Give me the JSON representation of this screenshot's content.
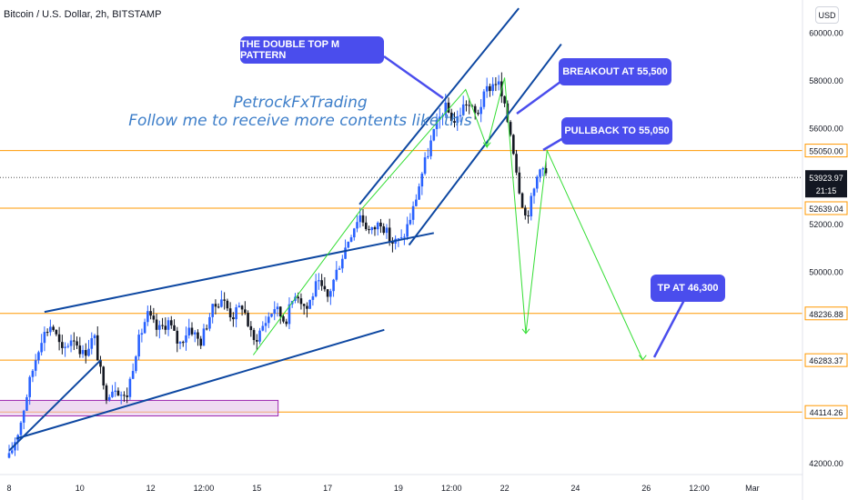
{
  "header": {
    "symbol_title": "Bitcoin / U.S. Dollar, 2h, BITSTAMP",
    "currency": "USD"
  },
  "watermark": {
    "line1": "PetrockFxTrading",
    "line2": "Follow me to receive more contents like this"
  },
  "annotations": {
    "double_top": "THE DOUBLE TOP M PATTERN",
    "breakout": "BREAKOUT AT 55,500",
    "pullback": "PULLBACK TO 55,050",
    "tp": "TP AT 46,300"
  },
  "colors": {
    "bull": "#2962ff",
    "bear": "#131722",
    "level_line": "#ff9800",
    "trendline": "#0d47a1",
    "pattern": "#33dd33",
    "callout": "#4a4ded",
    "zone_fill": "#e1bee7",
    "zone_border": "#9c27b0",
    "price_line": "#555555"
  },
  "chart_data": {
    "type": "candlestick",
    "title": "Bitcoin / U.S. Dollar, 2h, BITSTAMP",
    "ylim": [
      41600,
      61200
    ],
    "y_ticks": [
      "60000.00",
      "58000.00",
      "56000.00",
      "52000.00",
      "50000.00",
      "42000.00"
    ],
    "x_ticks": [
      {
        "label": "8",
        "day": 8
      },
      {
        "label": "10",
        "day": 10
      },
      {
        "label": "12",
        "day": 12
      },
      {
        "label": "12:00",
        "day": 13.5
      },
      {
        "label": "15",
        "day": 15
      },
      {
        "label": "17",
        "day": 17
      },
      {
        "label": "19",
        "day": 19
      },
      {
        "label": "12:00",
        "day": 20.5
      },
      {
        "label": "22",
        "day": 22
      },
      {
        "label": "24",
        "day": 24
      },
      {
        "label": "26",
        "day": 26
      },
      {
        "label": "12:00",
        "day": 27.5
      },
      {
        "label": "Mar",
        "day": 29
      }
    ],
    "horizontal_levels": [
      {
        "price": 55050,
        "label": "55050.00"
      },
      {
        "price": 52639.04,
        "label": "52639.04"
      },
      {
        "price": 48236.88,
        "label": "48236.88"
      },
      {
        "price": 46283.37,
        "label": "46283.37"
      },
      {
        "price": 44114.26,
        "label": "44114.26"
      }
    ],
    "current_price": {
      "price": 53923.97,
      "label": "53923.97",
      "countdown": "21:15"
    },
    "price_path": [
      {
        "day": 8.0,
        "price": 42200
      },
      {
        "day": 8.3,
        "price": 43500
      },
      {
        "day": 8.6,
        "price": 45500
      },
      {
        "day": 8.9,
        "price": 47200
      },
      {
        "day": 9.2,
        "price": 47800
      },
      {
        "day": 9.5,
        "price": 46600
      },
      {
        "day": 9.8,
        "price": 47300
      },
      {
        "day": 10.1,
        "price": 46500
      },
      {
        "day": 10.4,
        "price": 47300
      },
      {
        "day": 10.7,
        "price": 44800
      },
      {
        "day": 11.0,
        "price": 45200
      },
      {
        "day": 11.3,
        "price": 44600
      },
      {
        "day": 11.6,
        "price": 46800
      },
      {
        "day": 11.9,
        "price": 48200
      },
      {
        "day": 12.2,
        "price": 47500
      },
      {
        "day": 12.5,
        "price": 47900
      },
      {
        "day": 12.8,
        "price": 46900
      },
      {
        "day": 13.1,
        "price": 47700
      },
      {
        "day": 13.4,
        "price": 47000
      },
      {
        "day": 13.7,
        "price": 48300
      },
      {
        "day": 14.0,
        "price": 48900
      },
      {
        "day": 14.3,
        "price": 48100
      },
      {
        "day": 14.6,
        "price": 48600
      },
      {
        "day": 14.9,
        "price": 47000
      },
      {
        "day": 15.2,
        "price": 47800
      },
      {
        "day": 15.5,
        "price": 48500
      },
      {
        "day": 15.8,
        "price": 47900
      },
      {
        "day": 16.1,
        "price": 49200
      },
      {
        "day": 16.4,
        "price": 48400
      },
      {
        "day": 16.7,
        "price": 49500
      },
      {
        "day": 17.0,
        "price": 48900
      },
      {
        "day": 17.3,
        "price": 50200
      },
      {
        "day": 17.6,
        "price": 51400
      },
      {
        "day": 17.9,
        "price": 52400
      },
      {
        "day": 18.2,
        "price": 51600
      },
      {
        "day": 18.5,
        "price": 52100
      },
      {
        "day": 18.8,
        "price": 51200
      },
      {
        "day": 19.1,
        "price": 51300
      },
      {
        "day": 19.4,
        "price": 52500
      },
      {
        "day": 19.7,
        "price": 54300
      },
      {
        "day": 20.0,
        "price": 55800
      },
      {
        "day": 20.3,
        "price": 56900
      },
      {
        "day": 20.6,
        "price": 56200
      },
      {
        "day": 20.9,
        "price": 57100
      },
      {
        "day": 21.2,
        "price": 56500
      },
      {
        "day": 21.5,
        "price": 57600
      },
      {
        "day": 21.8,
        "price": 58000
      },
      {
        "day": 22.0,
        "price": 56800
      },
      {
        "day": 22.2,
        "price": 55600
      },
      {
        "day": 22.4,
        "price": 53600
      },
      {
        "day": 22.6,
        "price": 52200
      },
      {
        "day": 22.8,
        "price": 53200
      },
      {
        "day": 23.0,
        "price": 54500
      },
      {
        "day": 23.2,
        "price": 53924
      }
    ],
    "trendlines": [
      {
        "from": {
          "day": 8.0,
          "price": 42500
        },
        "to": {
          "day": 10.6,
          "price": 46300
        }
      },
      {
        "from": {
          "day": 9.0,
          "price": 48300
        },
        "to": {
          "day": 20.0,
          "price": 51600
        }
      },
      {
        "from": {
          "day": 8.2,
          "price": 43000
        },
        "to": {
          "day": 18.6,
          "price": 47550
        }
      },
      {
        "from": {
          "day": 17.9,
          "price": 52800
        },
        "to": {
          "day": 22.4,
          "price": 61000
        }
      },
      {
        "from": {
          "day": 19.3,
          "price": 51100
        },
        "to": {
          "day": 23.6,
          "price": 59500
        }
      }
    ],
    "pattern_path": [
      {
        "day": 14.9,
        "price": 46500
      },
      {
        "day": 17.9,
        "price": 52500
      },
      {
        "day": 20.9,
        "price": 57600
      },
      {
        "day": 21.5,
        "price": 55200
      },
      {
        "day": 22.0,
        "price": 58100
      },
      {
        "day": 22.6,
        "price": 47400
      },
      {
        "day": 23.2,
        "price": 55050
      },
      {
        "day": 25.9,
        "price": 46300
      }
    ],
    "zone": {
      "day_from": 7.4,
      "day_to": 15.6,
      "price_from": 43950,
      "price_to": 44600
    }
  }
}
